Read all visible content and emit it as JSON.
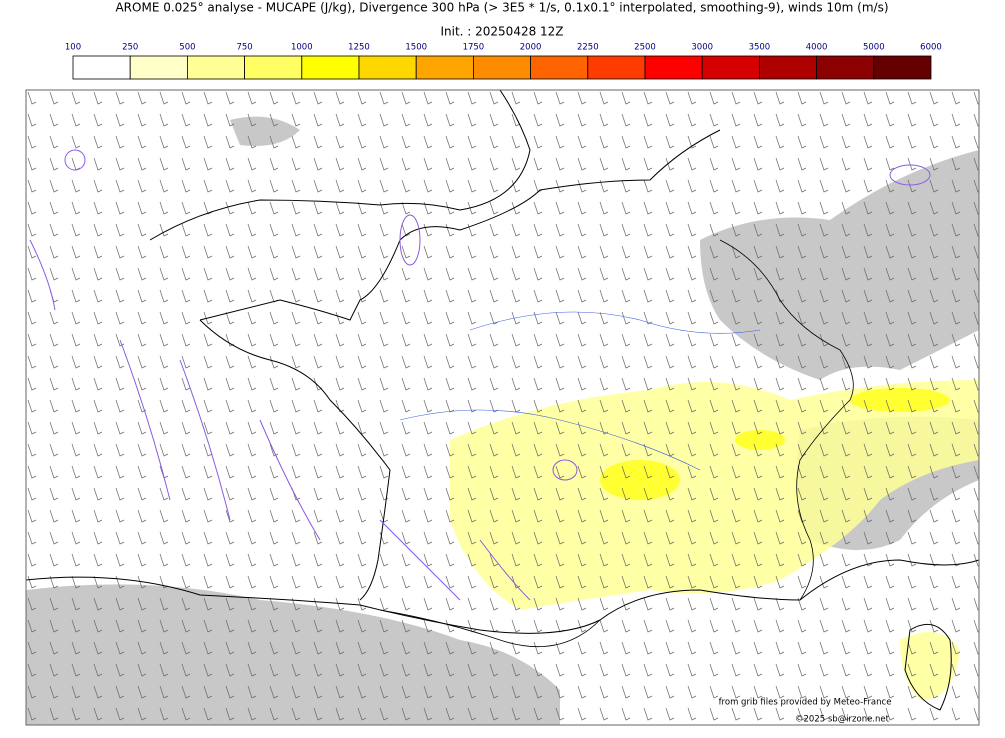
{
  "header": {
    "title": "AROME 0.025° analyse - MUCAPE (J/kg), Divergence 300 hPa (> 3E5 * 1/s, 0.1x0.1° interpolated, smoothing-9), winds 10m (m/s)",
    "init": "Init. : 20250428 12Z"
  },
  "colorbar": {
    "levels": [
      100,
      250,
      500,
      750,
      1000,
      1250,
      1500,
      1750,
      2000,
      2250,
      2500,
      3000,
      3500,
      4000,
      5000,
      6000
    ],
    "colors": [
      "#ffffff",
      "#ffffc8",
      "#ffff96",
      "#ffff64",
      "#ffff00",
      "#ffd700",
      "#ffa500",
      "#ff8c00",
      "#ff6400",
      "#ff3c00",
      "#ff0000",
      "#d70000",
      "#af0000",
      "#8b0000",
      "#640000"
    ],
    "label_color": "#000080"
  },
  "credits": {
    "source": "from grib files provided by Meteo-France",
    "copyright": "©2025 sb@irzone.net"
  }
}
